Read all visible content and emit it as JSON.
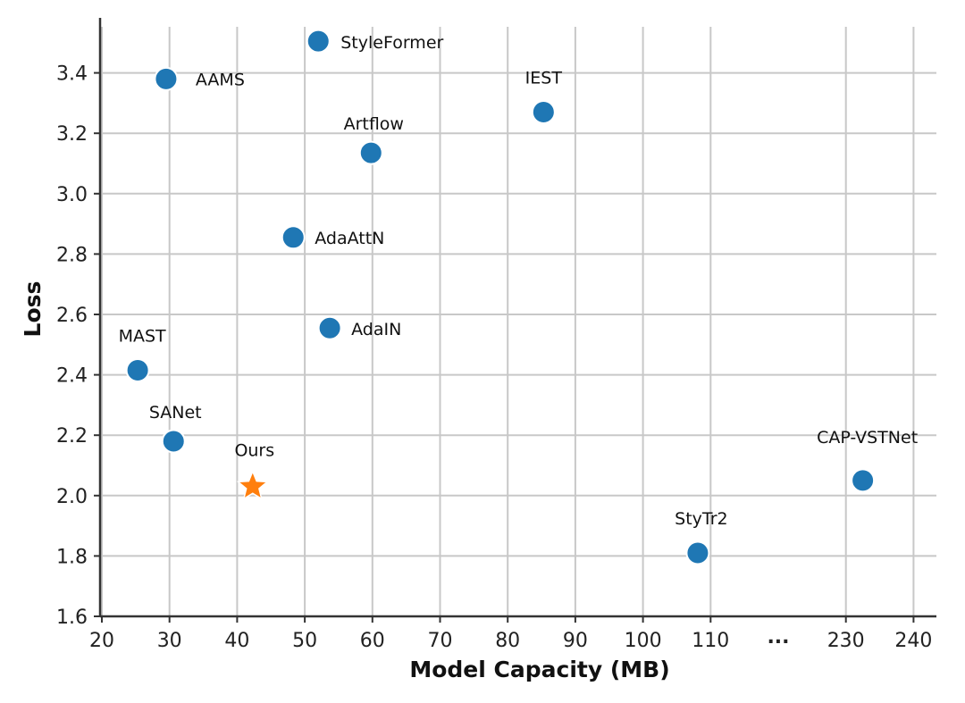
{
  "chart_data": {
    "type": "scatter",
    "title": "",
    "xlabel": "Model Capacity (MB)",
    "ylabel": "Loss",
    "x_ticks": [
      "20",
      "30",
      "40",
      "50",
      "60",
      "70",
      "80",
      "90",
      "100",
      "110",
      "...",
      "230",
      "240"
    ],
    "y_ticks": [
      "1.6",
      "1.8",
      "2.0",
      "2.2",
      "2.4",
      "2.6",
      "2.8",
      "3.0",
      "3.2",
      "3.4"
    ],
    "ylim": [
      1.6,
      3.55
    ],
    "grid": true,
    "colors": {
      "point": "#1f77b4",
      "ours": "#ff7f0e",
      "ours_label": "#e8332a"
    },
    "points": [
      {
        "name": "StyleFormer",
        "x": 52,
        "y": 3.505,
        "marker": "circle"
      },
      {
        "name": "AAMS",
        "x": 29.5,
        "y": 3.38,
        "marker": "circle"
      },
      {
        "name": "IEST",
        "x": 85.3,
        "y": 3.27,
        "marker": "circle"
      },
      {
        "name": "Artflow",
        "x": 59.8,
        "y": 3.135,
        "marker": "circle"
      },
      {
        "name": "AdaAttN",
        "x": 48.3,
        "y": 2.855,
        "marker": "circle"
      },
      {
        "name": "AdaIN",
        "x": 53.7,
        "y": 2.555,
        "marker": "circle"
      },
      {
        "name": "MAST",
        "x": 25.3,
        "y": 2.415,
        "marker": "circle"
      },
      {
        "name": "SANet",
        "x": 30.6,
        "y": 2.18,
        "marker": "circle"
      },
      {
        "name": "Ours",
        "x": 42.3,
        "y": 2.03,
        "marker": "star"
      },
      {
        "name": "StyTr2",
        "x": 108.1,
        "y": 1.81,
        "marker": "circle"
      },
      {
        "name": "CAP-VSTNet",
        "x": 232.5,
        "y": 2.05,
        "marker": "circle"
      }
    ]
  }
}
